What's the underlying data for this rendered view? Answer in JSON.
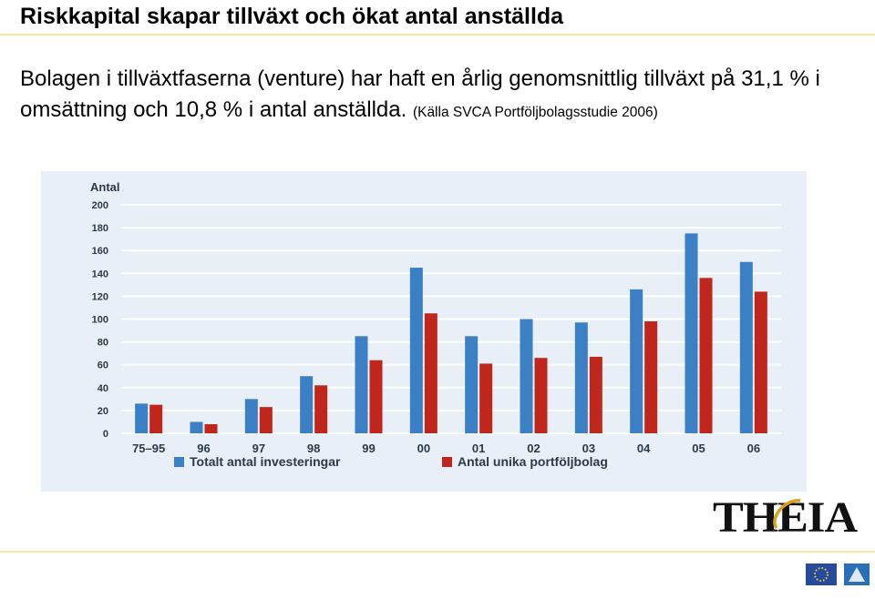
{
  "slide": {
    "title": "Riskkapital skapar tillväxt och ökat antal anställda",
    "intro_text": "Bolagen i tillväxtfaserna (venture) har haft en årlig genomsnittlig tillväxt på 31,1 % i omsättning och 10,8 % i antal anställda.",
    "source_text": "(Källa SVCA Portföljbolagsstudie 2006)",
    "logo_text": "THEIA"
  },
  "colors": {
    "background": "#ffffff",
    "chart_panel": "#e8eff6",
    "series_blue": "#3b7fc4",
    "series_red": "#c0261b",
    "grid": "#ffffff",
    "rule": "#f3e6a0"
  },
  "chart_data": {
    "type": "bar",
    "ylabel": "Antal",
    "xlabel": "",
    "title": "",
    "ylim": [
      0,
      200
    ],
    "yticks": [
      0,
      20,
      40,
      60,
      80,
      100,
      120,
      140,
      160,
      180,
      200
    ],
    "grid": true,
    "legend_position": "bottom",
    "categories": [
      "75–95",
      "96",
      "97",
      "98",
      "99",
      "00",
      "01",
      "02",
      "03",
      "04",
      "05",
      "06"
    ],
    "series": [
      {
        "name": "Totalt antal investeringar",
        "color": "#3b7fc4",
        "values": [
          26,
          10,
          30,
          50,
          85,
          145,
          85,
          100,
          97,
          126,
          175,
          150
        ]
      },
      {
        "name": "Antal unika portföljbolag",
        "color": "#c0261b",
        "values": [
          25,
          8,
          23,
          42,
          64,
          105,
          61,
          66,
          67,
          98,
          136,
          124
        ]
      }
    ]
  }
}
